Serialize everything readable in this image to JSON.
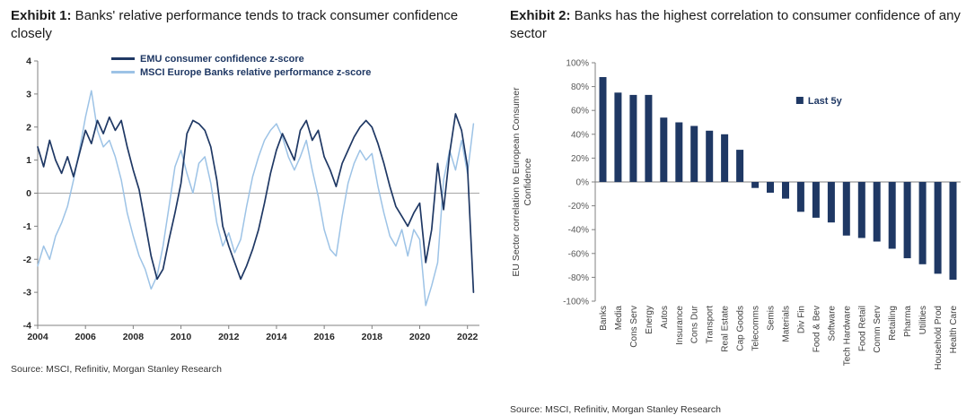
{
  "colors": {
    "navy": "#1F3864",
    "light_blue": "#9DC3E6",
    "axis": "#808080",
    "zero_line": "#a6a6a6"
  },
  "exhibit1": {
    "title_prefix": "Exhibit 1:",
    "title_rest": " Banks' relative performance tends to track consumer confidence closely",
    "legend": [
      "EMU consumer confidence z-score",
      "MSCI Europe Banks relative performance z-score"
    ],
    "source": "Source: MSCI, Refinitiv, Morgan Stanley Research"
  },
  "exhibit2": {
    "title_prefix": "Exhibit 2:",
    "title_rest": " Banks has the highest correlation to consumer confidence of any sector",
    "legend": "Last 5y",
    "ylabel_lines": [
      "EU Sector correlation to European Consumer",
      "Confidence"
    ],
    "source": "Source: MSCI, Refinitiv, Morgan Stanley Research"
  },
  "chart_data": [
    {
      "type": "line",
      "title": "Exhibit 1: Banks' relative performance tends to track consumer confidence closely",
      "xlim": [
        2004,
        2022.5
      ],
      "ylim": [
        -4,
        4
      ],
      "yticks": [
        -4,
        -3,
        -2,
        -1,
        0,
        1,
        2,
        3,
        4
      ],
      "xticks": [
        2004,
        2006,
        2008,
        2010,
        2012,
        2014,
        2016,
        2018,
        2020,
        2022
      ],
      "grid": false,
      "legend_position": "top-left-inside",
      "series": [
        {
          "name": "EMU consumer confidence z-score",
          "color": "#1F3864",
          "width": 1.7,
          "x_start": 2004,
          "x_step": 0.25,
          "values": [
            1.4,
            0.8,
            1.6,
            1.0,
            0.6,
            1.1,
            0.5,
            1.2,
            1.9,
            1.5,
            2.2,
            1.8,
            2.3,
            1.9,
            2.2,
            1.4,
            0.7,
            0.1,
            -0.9,
            -1.9,
            -2.6,
            -2.3,
            -1.4,
            -0.6,
            0.3,
            1.8,
            2.2,
            2.1,
            1.9,
            1.4,
            0.4,
            -1.0,
            -1.6,
            -2.1,
            -2.6,
            -2.2,
            -1.7,
            -1.1,
            -0.3,
            0.6,
            1.3,
            1.8,
            1.4,
            1.0,
            1.9,
            2.2,
            1.6,
            1.9,
            1.1,
            0.7,
            0.2,
            0.9,
            1.3,
            1.7,
            2.0,
            2.2,
            2.0,
            1.5,
            0.9,
            0.2,
            -0.4,
            -0.7,
            -1.0,
            -0.6,
            -0.3,
            -2.1,
            -1.1,
            0.9,
            -0.5,
            1.2,
            2.4,
            1.9,
            0.8,
            -3.0
          ]
        },
        {
          "name": "MSCI Europe Banks relative performance z-score",
          "color": "#9DC3E6",
          "width": 1.5,
          "x_start": 2004,
          "x_step": 0.25,
          "values": [
            -2.2,
            -1.6,
            -2.0,
            -1.3,
            -0.9,
            -0.4,
            0.4,
            1.3,
            2.3,
            3.1,
            1.9,
            1.4,
            1.6,
            1.1,
            0.4,
            -0.6,
            -1.3,
            -1.9,
            -2.3,
            -2.9,
            -2.5,
            -1.6,
            -0.4,
            0.8,
            1.3,
            0.6,
            0.0,
            0.9,
            1.1,
            0.3,
            -0.9,
            -1.6,
            -1.2,
            -1.8,
            -1.4,
            -0.4,
            0.5,
            1.1,
            1.6,
            1.9,
            2.1,
            1.7,
            1.1,
            0.7,
            1.1,
            1.6,
            0.7,
            -0.1,
            -1.1,
            -1.7,
            -1.9,
            -0.7,
            0.3,
            0.9,
            1.3,
            1.0,
            1.2,
            0.2,
            -0.6,
            -1.3,
            -1.6,
            -1.1,
            -1.9,
            -1.1,
            -1.4,
            -3.4,
            -2.8,
            -2.1,
            0.4,
            1.3,
            0.7,
            1.6,
            0.6,
            2.1
          ]
        }
      ]
    },
    {
      "type": "bar",
      "title": "Exhibit 2: Banks has the highest correlation to consumer confidence of any sector",
      "ylabel": "EU Sector correlation to European Consumer Confidence",
      "legend": "Last 5y",
      "bar_color": "#1F3864",
      "ylim": [
        -100,
        100
      ],
      "ytick_step": 20,
      "ytick_suffix": "%",
      "categories": [
        "Banks",
        "Media",
        "Cons Serv",
        "Energy",
        "Autos",
        "Insurance",
        "Cons Dur",
        "Transport",
        "Real Estate",
        "Cap Goods",
        "Telecomms",
        "Semis",
        "Materials",
        "Div Fin",
        "Food & Bev",
        "Software",
        "Tech Hardware",
        "Food Retail",
        "Comm Serv",
        "Retailing",
        "Pharma",
        "Utilities",
        "Household Prod",
        "Health Care"
      ],
      "values": [
        88,
        75,
        73,
        73,
        54,
        50,
        47,
        43,
        40,
        27,
        -5,
        -9,
        -14,
        -25,
        -30,
        -34,
        -45,
        -47,
        -50,
        -56,
        -64,
        -69,
        -77,
        -82
      ]
    }
  ]
}
